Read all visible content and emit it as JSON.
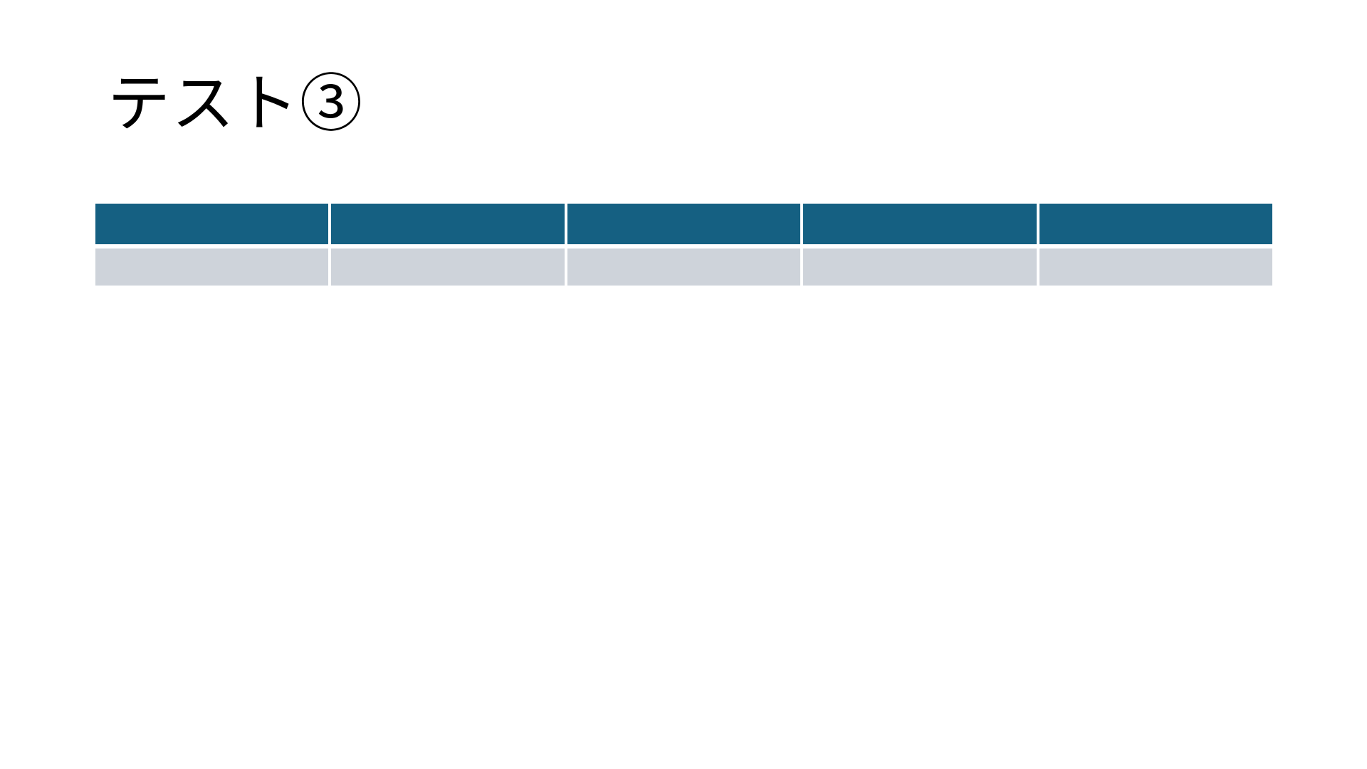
{
  "slide": {
    "title": "テスト③",
    "background_color": "#ffffff",
    "title_color": "#000000"
  },
  "table": {
    "header_color": "#156082",
    "band_color": "#ced3da",
    "divider_color": "#ffffff",
    "columns": [
      "",
      "",
      "",
      "",
      ""
    ],
    "rows": [
      [
        "",
        "",
        "",
        "",
        ""
      ]
    ]
  }
}
